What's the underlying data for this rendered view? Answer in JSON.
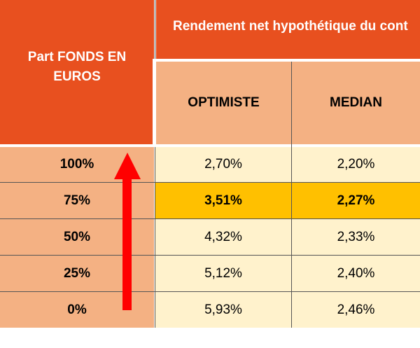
{
  "table": {
    "header_part": "Part FONDS EN EUROS",
    "header_rendement": "Rendement net hypothétique du cont",
    "col_optimiste": "OPTIMISTE",
    "col_median": "MEDIAN",
    "rows": [
      {
        "part": "100%",
        "optimiste": "2,70%",
        "median": "2,20%"
      },
      {
        "part": "75%",
        "optimiste": "3,51%",
        "median": "2,27%"
      },
      {
        "part": "50%",
        "optimiste": "4,32%",
        "median": "2,33%"
      },
      {
        "part": "25%",
        "optimiste": "5,12%",
        "median": "2,40%"
      },
      {
        "part": "0%",
        "optimiste": "5,93%",
        "median": "2,46%"
      }
    ],
    "highlighted_row": "75%"
  },
  "colors": {
    "header_orange": "#e8501f",
    "subheader_salmon": "#f4b183",
    "value_cream": "#fff2cc",
    "highlight_gold": "#ffc000",
    "arrow_red": "#ff0000"
  },
  "arrow_icon": "up-arrow-icon"
}
